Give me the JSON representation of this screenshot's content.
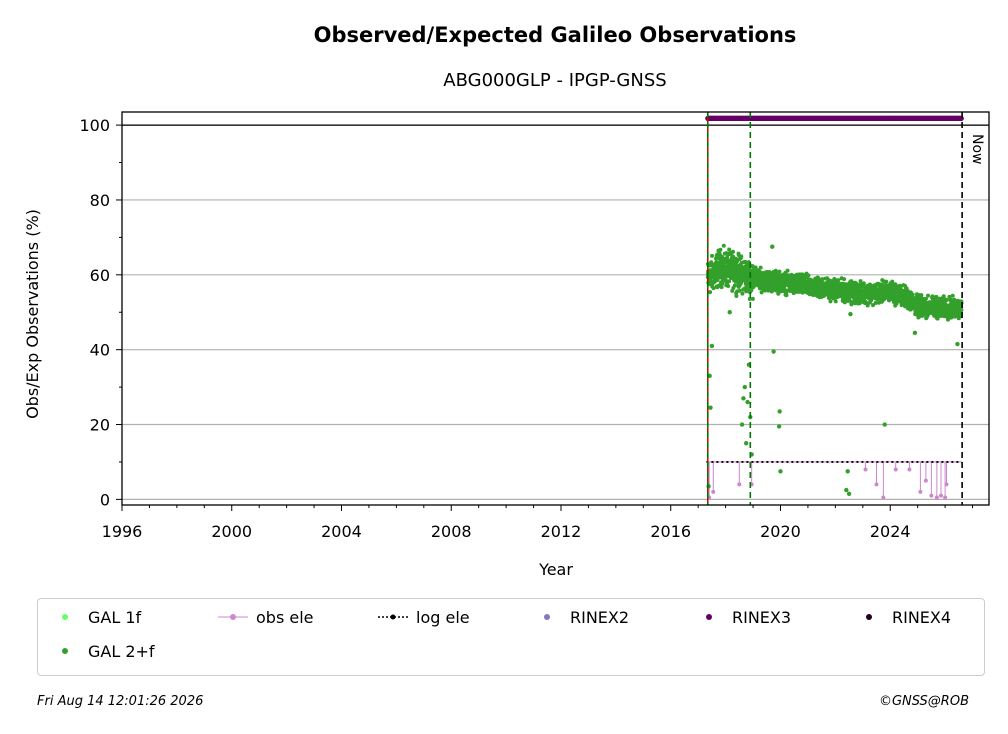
{
  "chart_data": {
    "type": "scatter",
    "title": "Observed/Expected Galileo Observations",
    "subtitle": "ABG000GLP - IPGP-GNSS",
    "xlabel": "Year",
    "ylabel": "Obs/Exp Observations (%)",
    "xlim": [
      1996,
      2027.6
    ],
    "ylim": [
      -1.5,
      103.5
    ],
    "xticks": [
      "1996",
      "2000",
      "2004",
      "2008",
      "2012",
      "2016",
      "2020",
      "2024"
    ],
    "yticks": [
      "0",
      "20",
      "40",
      "60",
      "80",
      "100"
    ],
    "grid": "horizontal",
    "now_label": "Now",
    "now_x": 2026.62,
    "markers": {
      "red_line_x": 2017.35,
      "green_dashed_x": [
        2017.35,
        2018.9
      ]
    },
    "reference_line_y": 100,
    "series": [
      {
        "name": "GAL 1f",
        "color": "#66ff66",
        "values": []
      },
      {
        "name": "obs ele",
        "color": "#cc88cc",
        "level": 10,
        "x_range": [
          2017.35,
          2026.6
        ],
        "dips": [
          [
            2017.4,
            0.5
          ],
          [
            2017.55,
            2
          ],
          [
            2018.5,
            4
          ],
          [
            2018.95,
            4
          ],
          [
            2023.1,
            8
          ],
          [
            2023.5,
            4
          ],
          [
            2023.75,
            0.5
          ],
          [
            2024.2,
            8
          ],
          [
            2024.7,
            8
          ],
          [
            2025.1,
            2
          ],
          [
            2025.3,
            5
          ],
          [
            2025.5,
            1
          ],
          [
            2025.7,
            0.5
          ],
          [
            2025.85,
            1
          ],
          [
            2026.0,
            0.5
          ],
          [
            2026.05,
            4
          ]
        ]
      },
      {
        "name": "log ele",
        "color": "#000000",
        "level": 10,
        "x_range": [
          2017.3,
          2026.6
        ]
      },
      {
        "name": "RINEX2",
        "color": "#8877bb",
        "values": []
      },
      {
        "name": "RINEX3",
        "color": "#660066",
        "level": 101.8,
        "x_range": [
          2017.35,
          2026.6
        ]
      },
      {
        "name": "RINEX4",
        "color": "#220022",
        "values": []
      },
      {
        "name": "GAL 2+f",
        "color": "#33a02c",
        "trend": [
          [
            2017.35,
            59
          ],
          [
            2017.8,
            62
          ],
          [
            2018.3,
            61
          ],
          [
            2019.0,
            59
          ],
          [
            2020.0,
            58
          ],
          [
            2021.0,
            57
          ],
          [
            2022.0,
            56
          ],
          [
            2023.0,
            55
          ],
          [
            2024.0,
            55.5
          ],
          [
            2024.6,
            54
          ],
          [
            2025.0,
            51.5
          ],
          [
            2026.6,
            51
          ]
        ],
        "outliers": [
          [
            2017.38,
            3.5
          ],
          [
            2017.42,
            33
          ],
          [
            2017.45,
            24.5
          ],
          [
            2017.5,
            41
          ],
          [
            2018.15,
            50
          ],
          [
            2018.6,
            20
          ],
          [
            2018.65,
            27
          ],
          [
            2018.7,
            30
          ],
          [
            2018.75,
            15
          ],
          [
            2018.8,
            26
          ],
          [
            2018.85,
            36
          ],
          [
            2018.9,
            22
          ],
          [
            2018.95,
            12
          ],
          [
            2019.7,
            67.5
          ],
          [
            2019.75,
            39.5
          ],
          [
            2019.95,
            19.5
          ],
          [
            2019.97,
            23.5
          ],
          [
            2020.0,
            7.5
          ],
          [
            2022.4,
            2.5
          ],
          [
            2022.45,
            7.5
          ],
          [
            2022.5,
            1.5
          ],
          [
            2022.55,
            49.5
          ],
          [
            2023.8,
            20
          ],
          [
            2024.9,
            44.5
          ],
          [
            2026.45,
            41.5
          ]
        ]
      }
    ]
  },
  "legend": {
    "items": [
      "GAL 1f",
      "obs ele",
      "log ele",
      "RINEX2",
      "RINEX3",
      "RINEX4",
      "GAL 2+f"
    ]
  },
  "footer": {
    "timestamp": "Fri Aug 14 12:01:26 2026",
    "credit": "©GNSS@ROB"
  }
}
